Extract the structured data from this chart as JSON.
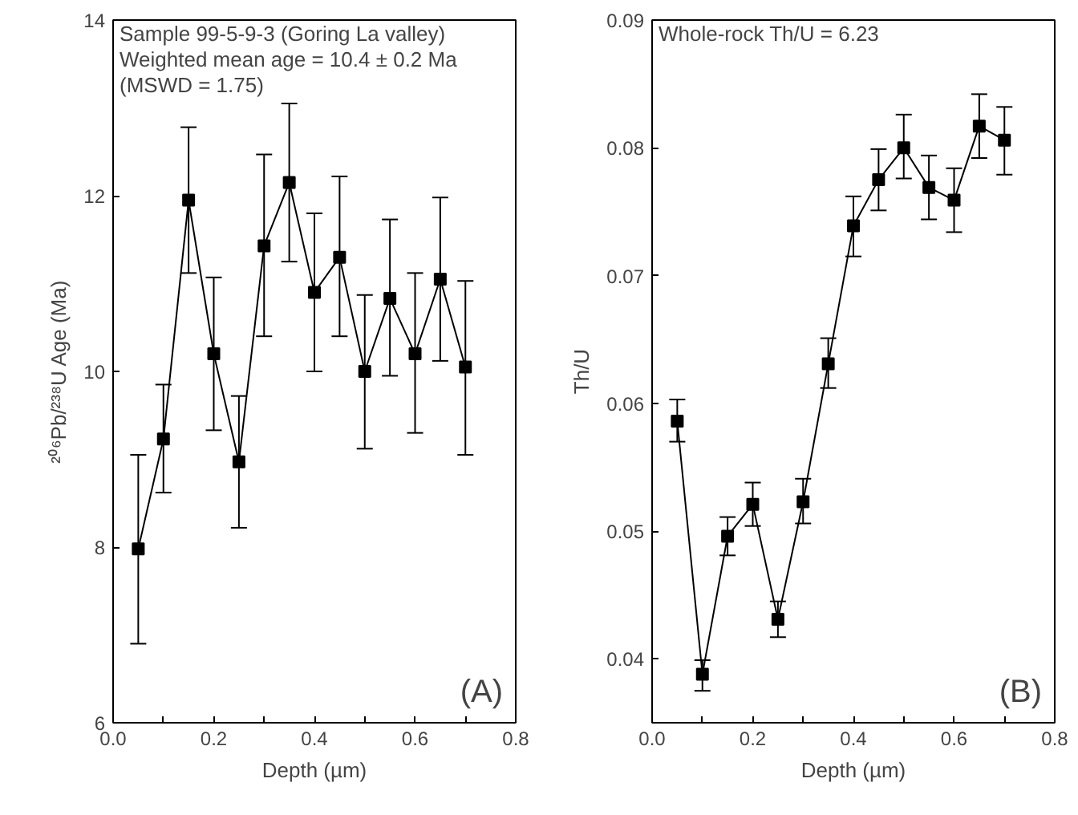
{
  "chart_data": [
    {
      "type": "line",
      "xlabel": "Depth (µm)",
      "ylabel": "²⁰⁶Pb/²³⁸U Age (Ma)",
      "marker": "square",
      "line_style": "solid",
      "grid": false,
      "x": [
        0.05,
        0.1,
        0.15,
        0.2,
        0.25,
        0.3,
        0.35,
        0.4,
        0.45,
        0.5,
        0.55,
        0.6,
        0.65,
        0.7
      ],
      "series": [
        {
          "color": "#000000",
          "values": [
            7.98,
            9.23,
            11.95,
            10.2,
            8.97,
            11.43,
            12.15,
            10.9,
            11.3,
            10.0,
            10.83,
            10.2,
            11.05,
            10.05
          ],
          "errors": [
            [
              6.9,
              9.05
            ],
            [
              8.62,
              9.85
            ],
            [
              11.12,
              12.78
            ],
            [
              9.33,
              11.07
            ],
            [
              8.22,
              9.72
            ],
            [
              10.4,
              12.47
            ],
            [
              11.25,
              13.05
            ],
            [
              10.0,
              11.8
            ],
            [
              10.4,
              12.22
            ],
            [
              9.12,
              10.87
            ],
            [
              9.95,
              11.73
            ],
            [
              9.3,
              11.12
            ],
            [
              10.12,
              11.98
            ],
            [
              9.05,
              11.03
            ]
          ]
        }
      ],
      "xlim": [
        0,
        0.8
      ],
      "ylim": [
        6,
        14
      ],
      "xticks": [
        {
          "value": 0,
          "label": "0.0"
        },
        {
          "value": 0.1,
          "label": null
        },
        {
          "value": 0.2,
          "label": "0.2"
        },
        {
          "value": 0.3,
          "label": null
        },
        {
          "value": 0.4,
          "label": "0.4"
        },
        {
          "value": 0.5,
          "label": null
        },
        {
          "value": 0.6,
          "label": "0.6"
        },
        {
          "value": 0.7,
          "label": null
        },
        {
          "value": 0.8,
          "label": "0.8"
        }
      ],
      "yticks": [
        6,
        8,
        10,
        12,
        14
      ],
      "annotations": [
        "Sample 99-5-9-3 (Goring La valley)",
        "Weighted mean age = 10.4 ± 0.2 Ma",
        "(MSWD = 1.75)",
        "(A)"
      ]
    },
    {
      "type": "line",
      "xlabel": "Depth (µm)",
      "ylabel": "Th/U",
      "marker": "square",
      "line_style": "solid",
      "grid": false,
      "x": [
        0.05,
        0.1,
        0.15,
        0.2,
        0.25,
        0.3,
        0.35,
        0.4,
        0.45,
        0.5,
        0.55,
        0.6,
        0.65,
        0.7
      ],
      "series": [
        {
          "color": "#000000",
          "values": [
            0.0586,
            0.0388,
            0.0496,
            0.0521,
            0.0431,
            0.0523,
            0.0631,
            0.0739,
            0.0775,
            0.08,
            0.0769,
            0.0759,
            0.0817,
            0.0806
          ],
          "errors": [
            [
              0.057,
              0.0603
            ],
            [
              0.0375,
              0.0399
            ],
            [
              0.0481,
              0.0511
            ],
            [
              0.0504,
              0.0538
            ],
            [
              0.0417,
              0.0445
            ],
            [
              0.0506,
              0.0541
            ],
            [
              0.0612,
              0.0651
            ],
            [
              0.0715,
              0.0762
            ],
            [
              0.0751,
              0.0799
            ],
            [
              0.0776,
              0.0826
            ],
            [
              0.0744,
              0.0794
            ],
            [
              0.0734,
              0.0784
            ],
            [
              0.0792,
              0.0842
            ],
            [
              0.0779,
              0.0832
            ]
          ]
        }
      ],
      "xlim": [
        0,
        0.8
      ],
      "ylim": [
        0.035,
        0.09
      ],
      "xticks": [
        {
          "value": 0,
          "label": "0.0"
        },
        {
          "value": 0.1,
          "label": null
        },
        {
          "value": 0.2,
          "label": "0.2"
        },
        {
          "value": 0.3,
          "label": null
        },
        {
          "value": 0.4,
          "label": "0.4"
        },
        {
          "value": 0.5,
          "label": null
        },
        {
          "value": 0.6,
          "label": "0.6"
        },
        {
          "value": 0.7,
          "label": null
        },
        {
          "value": 0.8,
          "label": "0.8"
        }
      ],
      "yticks": [
        0.04,
        0.05,
        0.06,
        0.07,
        0.08,
        0.09
      ],
      "annotations": [
        "Whole-rock Th/U = 6.23",
        "(B)"
      ]
    }
  ]
}
